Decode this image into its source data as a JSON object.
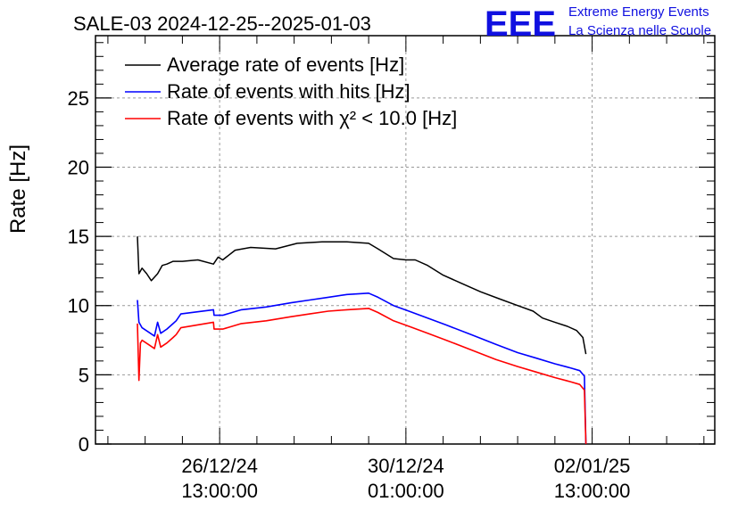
{
  "chart_data": {
    "type": "line",
    "title": "SALE-03 2024-12-25--2025-01-03",
    "xlabel": "",
    "ylabel": "Rate [Hz]",
    "ylim": [
      0,
      29.5
    ],
    "yticks": [
      0,
      5,
      10,
      15,
      20,
      25
    ],
    "xlim_hours_from_start": [
      -3.0,
      196.5
    ],
    "xticks": [
      {
        "hours": 37,
        "label_date": "26/12/24",
        "label_time": "13:00:00"
      },
      {
        "hours": 97,
        "label_date": "30/12/24",
        "label_time": "01:00:00"
      },
      {
        "hours": 157,
        "label_date": "02/01/25",
        "label_time": "13:00:00"
      }
    ],
    "grid": true,
    "legend_position": "top-left",
    "series": [
      {
        "name": "Average rate of events [Hz]",
        "color": "#000000",
        "x": [
          10.5,
          11.0,
          12.0,
          13.5,
          15.0,
          17.0,
          18.5,
          20.0,
          22.0,
          25.0,
          30.0,
          35.0,
          36.5,
          38.0,
          42.0,
          47.0,
          55.0,
          62.0,
          70.0,
          78.0,
          85.0,
          88.0,
          93.0,
          97.0,
          100.0,
          104.0,
          109.0,
          115.0,
          121.0,
          127.0,
          133.0,
          138.0,
          141.0,
          145.0,
          149.0,
          152.0,
          154.0,
          155.0
        ],
        "y": [
          15.0,
          12.3,
          12.7,
          12.3,
          11.8,
          12.3,
          12.9,
          13.0,
          13.2,
          13.2,
          13.3,
          13.0,
          13.5,
          13.3,
          14.0,
          14.2,
          14.1,
          14.5,
          14.6,
          14.6,
          14.5,
          14.1,
          13.4,
          13.3,
          13.3,
          12.9,
          12.2,
          11.6,
          11.0,
          10.5,
          10.0,
          9.6,
          9.1,
          8.8,
          8.5,
          8.2,
          7.7,
          6.5
        ]
      },
      {
        "name": "Rate of events with hits [Hz]",
        "color": "#0000ff",
        "x": [
          10.5,
          11.0,
          12.0,
          14.0,
          16.0,
          17.0,
          18.0,
          20.0,
          22.0,
          23.0,
          24.5,
          35.0,
          35.2,
          38.0,
          44.0,
          52.0,
          60.0,
          66.0,
          72.0,
          78.0,
          85.0,
          88.0,
          93.0,
          98.0,
          104.0,
          110.0,
          118.0,
          126.0,
          133.0,
          139.0,
          145.0,
          150.0,
          153.0,
          154.5,
          155.0
        ],
        "y": [
          10.4,
          8.8,
          8.4,
          8.1,
          7.8,
          8.8,
          8.0,
          8.3,
          8.7,
          8.9,
          9.4,
          9.7,
          9.3,
          9.3,
          9.7,
          9.9,
          10.2,
          10.4,
          10.6,
          10.8,
          10.9,
          10.6,
          10.0,
          9.6,
          9.1,
          8.6,
          7.9,
          7.2,
          6.6,
          6.2,
          5.8,
          5.5,
          5.3,
          4.9,
          0.0
        ]
      },
      {
        "name": "Rate of events with χ² < 10.0 [Hz]",
        "color": "#ff0000",
        "x": [
          10.5,
          11.0,
          11.5,
          12.0,
          14.0,
          16.0,
          17.0,
          18.0,
          20.0,
          22.0,
          23.0,
          24.5,
          35.0,
          35.2,
          38.0,
          44.0,
          52.0,
          60.0,
          66.0,
          72.0,
          78.0,
          85.0,
          88.0,
          93.0,
          98.0,
          104.0,
          110.0,
          118.0,
          126.0,
          133.0,
          139.0,
          145.0,
          150.0,
          153.0,
          154.5,
          155.0
        ],
        "y": [
          8.7,
          4.6,
          7.3,
          7.5,
          7.2,
          6.9,
          7.9,
          7.0,
          7.3,
          7.7,
          7.9,
          8.4,
          8.8,
          8.3,
          8.3,
          8.7,
          8.9,
          9.2,
          9.4,
          9.6,
          9.7,
          9.8,
          9.5,
          8.9,
          8.5,
          8.0,
          7.5,
          6.8,
          6.1,
          5.6,
          5.2,
          4.8,
          4.5,
          4.3,
          3.9,
          0.0
        ]
      }
    ]
  },
  "logo": {
    "mark": "EEE",
    "line1": "Extreme Energy Events",
    "line2": "La Scienza nelle Scuole",
    "color": "#1010e0"
  }
}
